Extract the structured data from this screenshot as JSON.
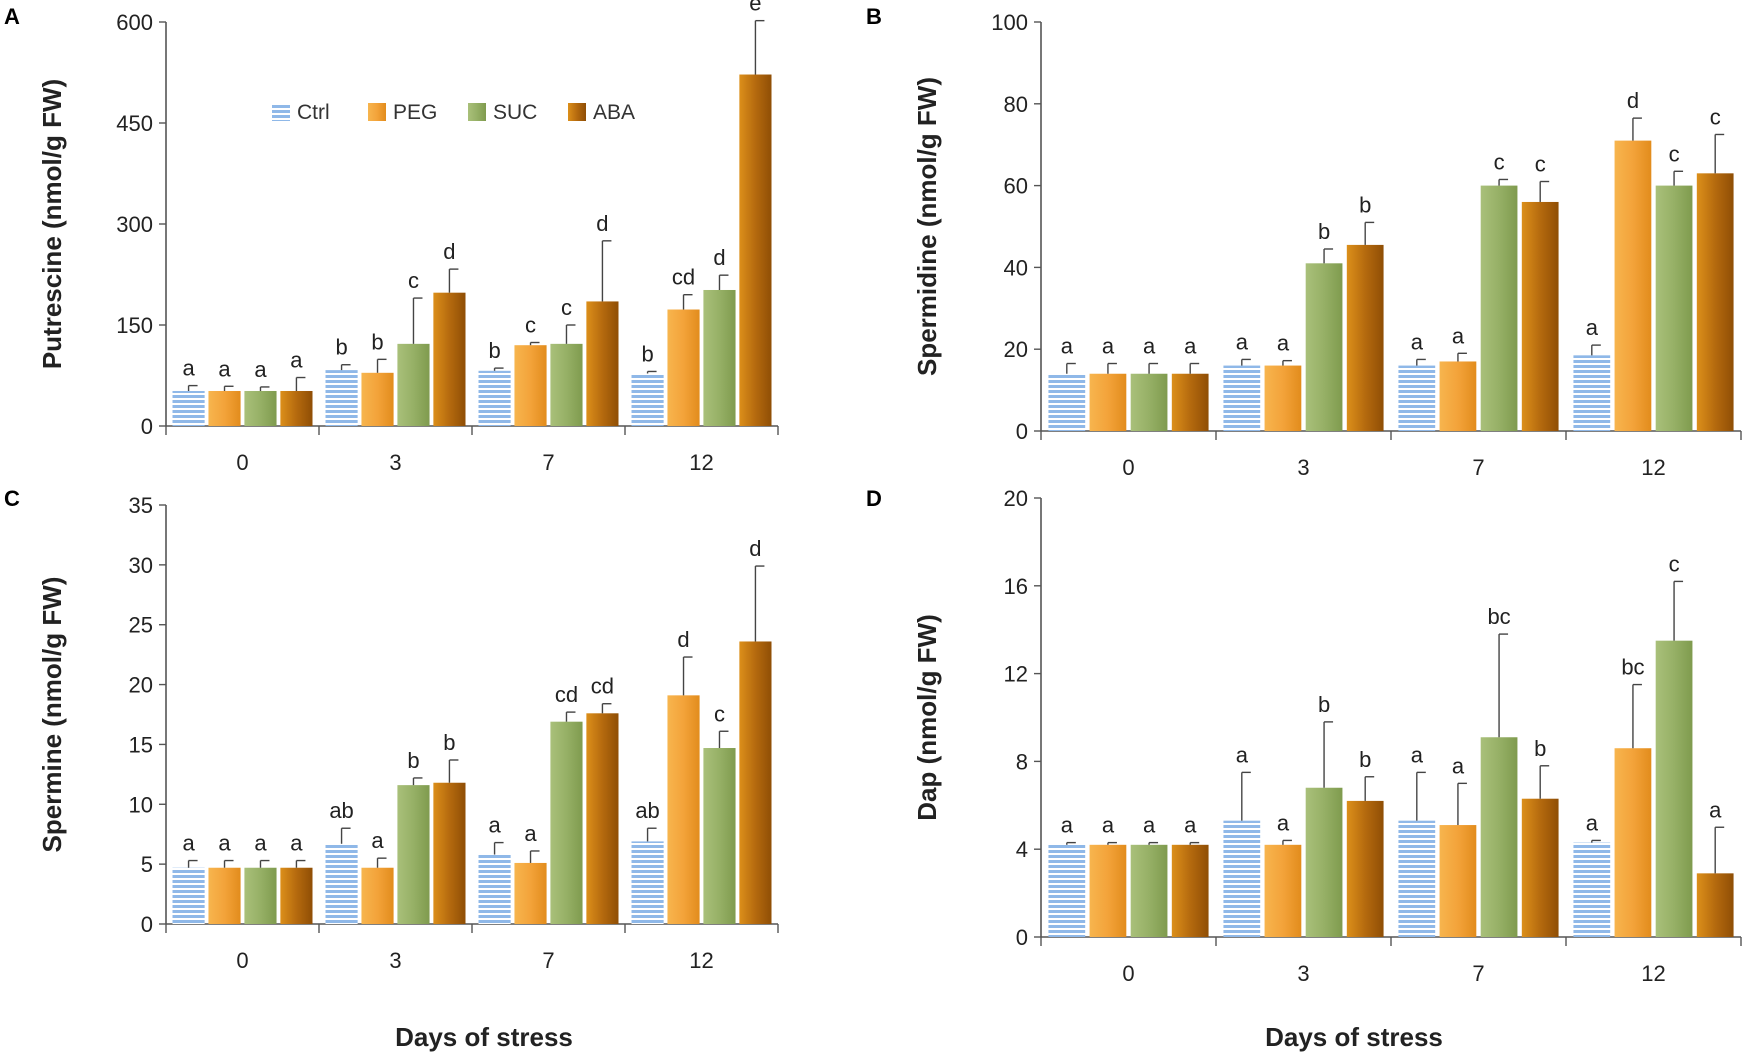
{
  "chart_data": [
    {
      "panel": "A",
      "type": "bar",
      "ylabel": "Putrescine (nmol/g FW)",
      "xlabel": "Days of stress",
      "ylim": [
        0,
        600
      ],
      "yticks": [
        0,
        150,
        300,
        450,
        600
      ],
      "categories": [
        "0",
        "3",
        "7",
        "12"
      ],
      "legend": "top-left",
      "series": [
        {
          "name": "Ctrl",
          "values": [
            52,
            83,
            82,
            78
          ],
          "errors": [
            8,
            8,
            4,
            3
          ],
          "letters": [
            "a",
            "b",
            "b",
            "b"
          ]
        },
        {
          "name": "PEG",
          "values": [
            52,
            79,
            120,
            173
          ],
          "errors": [
            7,
            20,
            4,
            22
          ],
          "letters": [
            "a",
            "b",
            "c",
            "cd"
          ]
        },
        {
          "name": "SUC",
          "values": [
            52,
            122,
            122,
            202
          ],
          "errors": [
            6,
            68,
            28,
            22
          ],
          "letters": [
            "a",
            "c",
            "c",
            "d"
          ]
        },
        {
          "name": "ABA",
          "values": [
            52,
            198,
            185,
            522
          ],
          "errors": [
            20,
            35,
            90,
            80
          ],
          "letters": [
            "a",
            "d",
            "d",
            "e"
          ]
        }
      ]
    },
    {
      "panel": "B",
      "type": "bar",
      "ylabel": "Spermidine (nmol/g FW)",
      "xlabel": "",
      "ylim": [
        0,
        100
      ],
      "yticks": [
        0,
        20,
        40,
        60,
        80,
        100
      ],
      "categories": [
        "0",
        "3",
        "7",
        "12"
      ],
      "series": [
        {
          "name": "Ctrl",
          "values": [
            14,
            16,
            16,
            18.5
          ],
          "errors": [
            2.5,
            1.5,
            1.5,
            2.5
          ],
          "letters": [
            "a",
            "a",
            "a",
            "a"
          ]
        },
        {
          "name": "PEG",
          "values": [
            14,
            16,
            17,
            71
          ],
          "errors": [
            2.5,
            1.2,
            2,
            5.5
          ],
          "letters": [
            "a",
            "a",
            "a",
            "d"
          ]
        },
        {
          "name": "SUC",
          "values": [
            14,
            41,
            60,
            60
          ],
          "errors": [
            2.5,
            3.5,
            1.5,
            3.5
          ],
          "letters": [
            "a",
            "b",
            "c",
            "c"
          ]
        },
        {
          "name": "ABA",
          "values": [
            14,
            45.5,
            56,
            63
          ],
          "errors": [
            2.5,
            5.5,
            5,
            9.5
          ],
          "letters": [
            "a",
            "b",
            "c",
            "c"
          ]
        }
      ]
    },
    {
      "panel": "C",
      "type": "bar",
      "ylabel": "Spermine (nmol/g FW)",
      "xlabel": "Days of stress",
      "ylim": [
        0,
        35
      ],
      "yticks": [
        0,
        5,
        10,
        15,
        20,
        25,
        30,
        35
      ],
      "categories": [
        "0",
        "3",
        "7",
        "12"
      ],
      "series": [
        {
          "name": "Ctrl",
          "values": [
            4.7,
            6.7,
            5.8,
            6.9
          ],
          "errors": [
            0.6,
            1.3,
            1.0,
            1.1
          ],
          "letters": [
            "a",
            "ab",
            "a",
            "ab"
          ]
        },
        {
          "name": "PEG",
          "values": [
            4.7,
            4.7,
            5.1,
            19.1
          ],
          "errors": [
            0.6,
            0.8,
            1.0,
            3.2
          ],
          "letters": [
            "a",
            "a",
            "a",
            "d"
          ]
        },
        {
          "name": "SUC",
          "values": [
            4.7,
            11.6,
            16.9,
            14.7
          ],
          "errors": [
            0.6,
            0.6,
            0.8,
            1.4
          ],
          "letters": [
            "a",
            "b",
            "cd",
            "c"
          ]
        },
        {
          "name": "ABA",
          "values": [
            4.7,
            11.8,
            17.6,
            23.6
          ],
          "errors": [
            0.6,
            1.9,
            0.8,
            6.3
          ],
          "letters": [
            "a",
            "b",
            "cd",
            "d"
          ]
        }
      ]
    },
    {
      "panel": "D",
      "type": "bar",
      "ylabel": "Dap (nmol/g FW)",
      "xlabel": "Days of stress",
      "ylim": [
        0,
        20
      ],
      "yticks": [
        0,
        4,
        8,
        12,
        16,
        20
      ],
      "categories": [
        "0",
        "3",
        "7",
        "12"
      ],
      "series": [
        {
          "name": "Ctrl",
          "values": [
            4.2,
            5.3,
            5.3,
            4.3
          ],
          "errors": [
            0.1,
            2.2,
            2.2,
            0.1
          ],
          "letters": [
            "a",
            "a",
            "a",
            "a"
          ]
        },
        {
          "name": "PEG",
          "values": [
            4.2,
            4.2,
            5.1,
            8.6
          ],
          "errors": [
            0.1,
            0.2,
            1.9,
            2.9
          ],
          "letters": [
            "a",
            "a",
            "a",
            "bc"
          ]
        },
        {
          "name": "SUC",
          "values": [
            4.2,
            6.8,
            9.1,
            13.5
          ],
          "errors": [
            0.1,
            3.0,
            4.7,
            2.7
          ],
          "letters": [
            "a",
            "b",
            "bc",
            "c"
          ]
        },
        {
          "name": "ABA",
          "values": [
            4.2,
            6.2,
            6.3,
            2.9
          ],
          "errors": [
            0.1,
            1.1,
            1.5,
            2.1
          ],
          "letters": [
            "a",
            "b",
            "b",
            "a"
          ]
        }
      ]
    }
  ],
  "legend": {
    "entries": [
      "Ctrl",
      "PEG",
      "SUC",
      "ABA"
    ]
  },
  "colors": {
    "ctrl_base": "#8fb8e8",
    "ctrl_stripe": "#ffffff",
    "peg_light": "#f7b54e",
    "peg_dark": "#e28c1c",
    "suc_light": "#a9c07a",
    "suc_dark": "#7f9b4e",
    "aba_light": "#dc8f1a",
    "aba_dark": "#8f4e05"
  }
}
